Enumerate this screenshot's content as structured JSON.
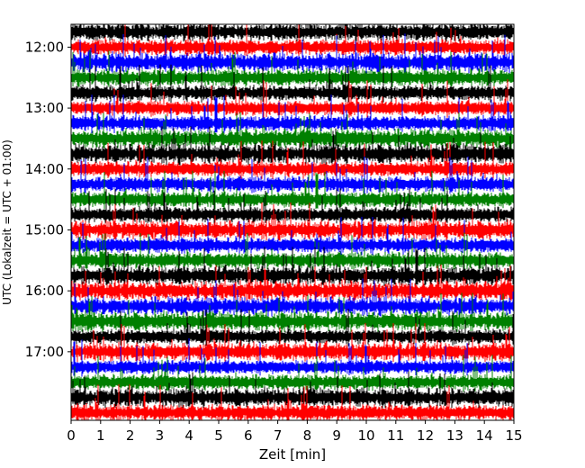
{
  "chart_data": {
    "type": "line",
    "subtype": "helicorder",
    "title": "",
    "xlabel": "Zeit  [min]",
    "ylabel": "UTC (Lokalzeit = UTC + 01:00)",
    "xlim": [
      0,
      15
    ],
    "x_ticks": [
      "0",
      "1",
      "2",
      "3",
      "4",
      "5",
      "6",
      "7",
      "8",
      "9",
      "10",
      "11",
      "12",
      "13",
      "14",
      "15"
    ],
    "y_ticks": [
      "12:00",
      "13:00",
      "14:00",
      "15:00",
      "16:00",
      "17:00"
    ],
    "time_range": [
      "11:45",
      "17:59"
    ],
    "trace_interval_min": 15,
    "trace_color_cycle": [
      "#000000",
      "#ff0000",
      "#0000ff",
      "#008000"
    ],
    "grid": false,
    "legend": "none"
  }
}
